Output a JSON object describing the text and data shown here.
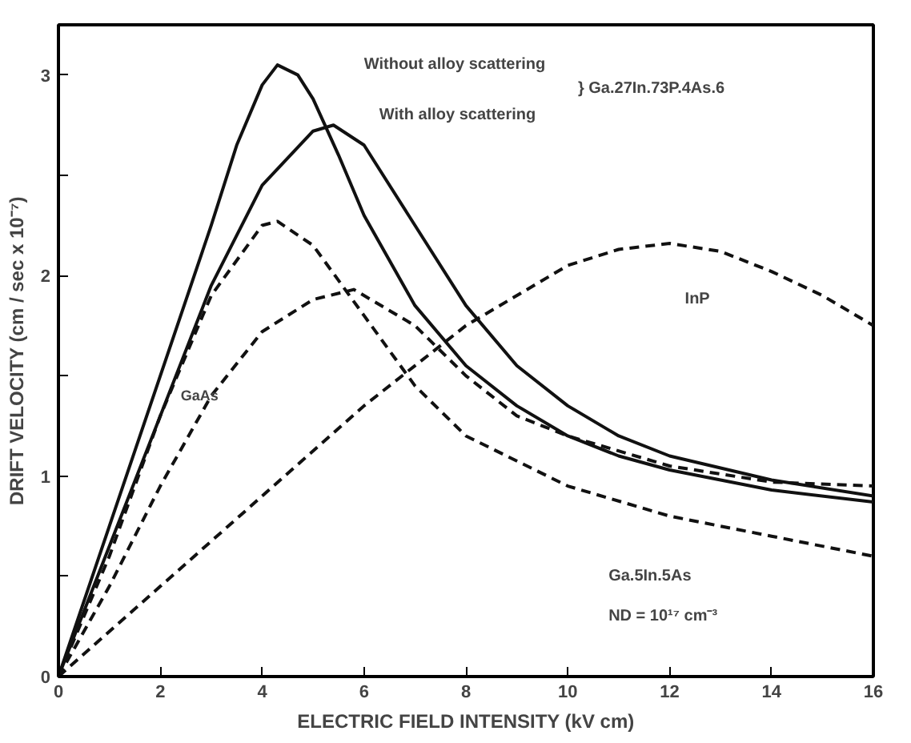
{
  "chart_data": {
    "type": "line",
    "xlabel": "ELECTRIC FIELD INTENSITY (kV cm)",
    "ylabel": "DRIFT VELOCITY (cm / sec x 10⁻⁷)",
    "xlim": [
      0,
      16
    ],
    "ylim": [
      0,
      3.25
    ],
    "xticks": [
      0,
      2,
      4,
      6,
      8,
      10,
      12,
      14,
      16
    ],
    "yticks": [
      0,
      {
        "value": 0.5,
        "label": null
      },
      1,
      {
        "value": 1.5,
        "label": null
      },
      2,
      {
        "value": 2.5,
        "label": null
      },
      3
    ],
    "grid": false,
    "marker": "none",
    "series": [
      {
        "color": "#111111",
        "line_style": "solid",
        "x": [
          0,
          1,
          2,
          3,
          3.5,
          4,
          4.3,
          4.7,
          5,
          5.5,
          6,
          7,
          8,
          9,
          10,
          11,
          12,
          14,
          16
        ],
        "values": [
          0,
          0.75,
          1.5,
          2.25,
          2.65,
          2.95,
          3.05,
          3.0,
          2.88,
          2.6,
          2.3,
          1.85,
          1.55,
          1.35,
          1.2,
          1.1,
          1.03,
          0.93,
          0.87
        ]
      },
      {
        "color": "#111111",
        "line_style": "solid",
        "x": [
          0,
          1,
          2,
          3,
          4,
          5,
          5.4,
          6,
          7,
          8,
          9,
          10,
          11,
          12,
          14,
          16
        ],
        "values": [
          0,
          0.65,
          1.3,
          1.95,
          2.45,
          2.72,
          2.75,
          2.65,
          2.25,
          1.85,
          1.55,
          1.35,
          1.2,
          1.1,
          0.98,
          0.9
        ]
      },
      {
        "color": "#111111",
        "line_style": "dashed",
        "x": [
          0,
          1,
          2,
          3,
          4,
          4.3,
          5,
          6,
          7,
          8,
          10,
          12,
          14,
          16
        ],
        "values": [
          0,
          0.6,
          1.3,
          1.9,
          2.25,
          2.27,
          2.15,
          1.8,
          1.45,
          1.2,
          0.95,
          0.8,
          0.7,
          0.6
        ]
      },
      {
        "color": "#111111",
        "line_style": "dashed",
        "x": [
          0,
          1,
          2,
          3,
          4,
          5,
          5.8,
          7,
          8,
          9,
          10,
          12,
          14,
          16
        ],
        "values": [
          0,
          0.45,
          0.95,
          1.4,
          1.72,
          1.88,
          1.93,
          1.75,
          1.5,
          1.3,
          1.2,
          1.05,
          0.97,
          0.95
        ]
      },
      {
        "color": "#111111",
        "line_style": "dashed",
        "x": [
          0,
          2,
          4,
          6,
          8,
          10,
          11,
          12,
          13,
          14,
          15,
          16
        ],
        "values": [
          0,
          0.45,
          0.9,
          1.35,
          1.75,
          2.05,
          2.13,
          2.16,
          2.12,
          2.02,
          1.9,
          1.75
        ]
      }
    ],
    "annotations": [
      "Without alloy scattering",
      "With alloy scattering",
      "} Ga.27In.73P.4As.6",
      "InP",
      "GaAs",
      "Ga.5In.5As",
      "ND = 10¹⁷ cm⁻³"
    ]
  }
}
